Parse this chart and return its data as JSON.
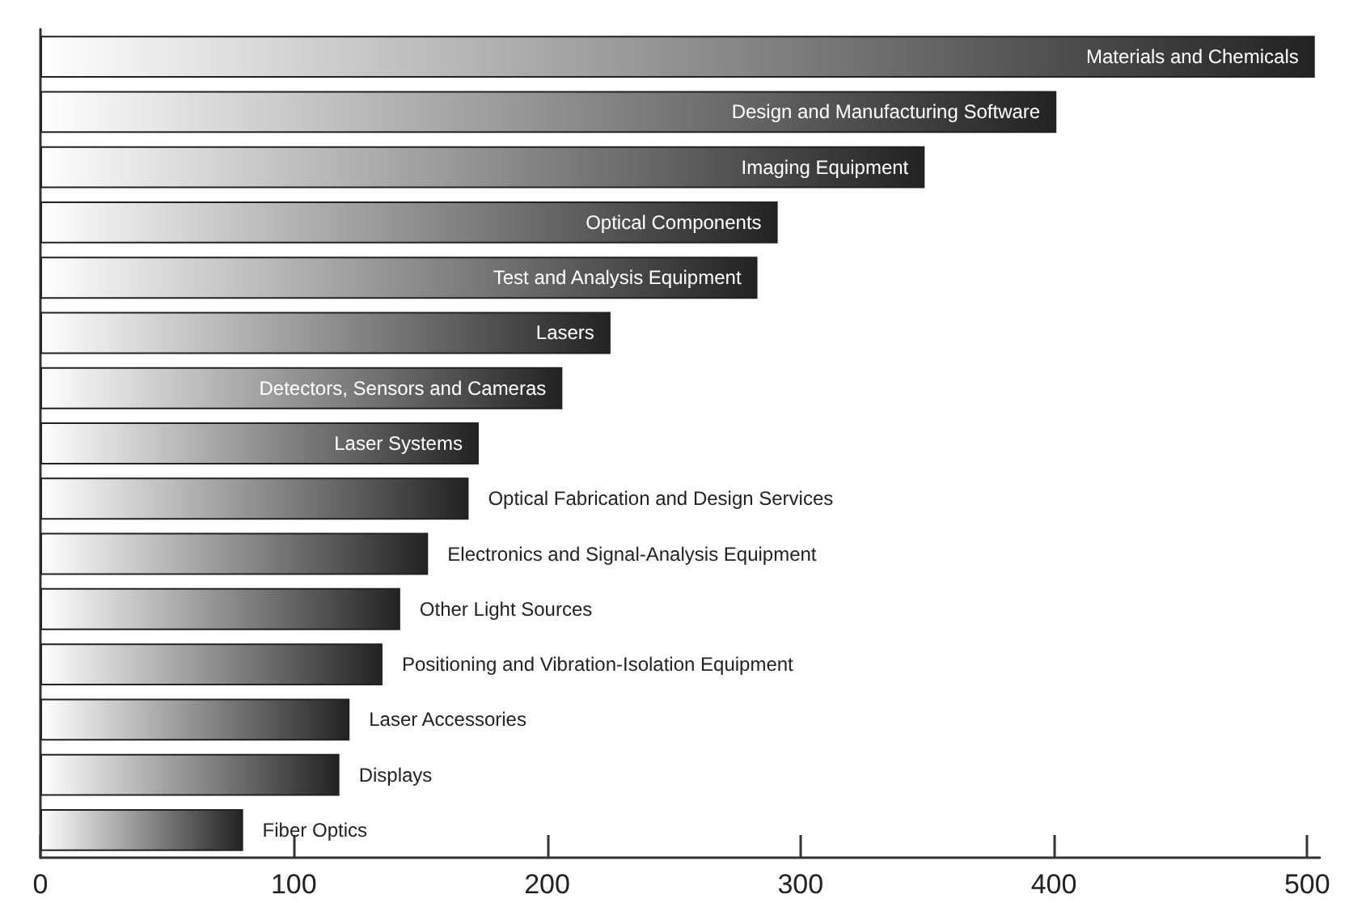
{
  "chart_data": {
    "type": "bar",
    "orientation": "horizontal",
    "categories": [
      "Materials and Chemicals",
      "Design and Manufacturing Software",
      "Imaging Equipment",
      "Optical Components",
      "Test and Analysis Equipment",
      "Lasers",
      "Detectors, Sensors and Cameras",
      "Laser Systems",
      "Optical Fabrication and Design Services",
      "Electronics and Signal-Analysis Equipment",
      "Other Light Sources",
      "Positioning and Vibration-Isolation Equipment",
      "Laser Accessories",
      "Displays",
      "Fiber Optics"
    ],
    "values": [
      503,
      401,
      349,
      291,
      283,
      225,
      206,
      173,
      169,
      153,
      142,
      135,
      122,
      118,
      80
    ],
    "color": "#222222",
    "xlim": [
      0,
      505
    ],
    "xticks": [
      0,
      100,
      200,
      300,
      400,
      500
    ],
    "tick_labels": "x",
    "grid": false
  }
}
